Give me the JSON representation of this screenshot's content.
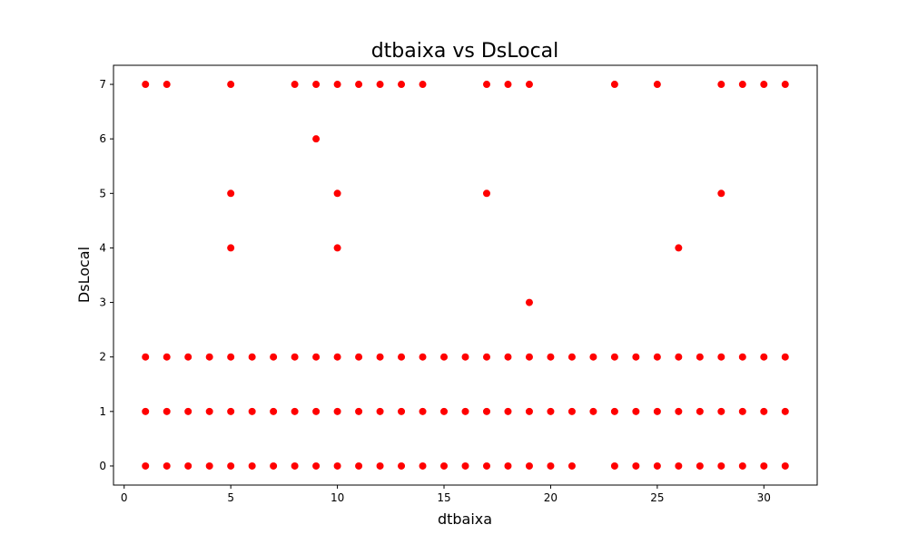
{
  "chart_data": {
    "type": "scatter",
    "title": "dtbaixa vs DsLocal",
    "xlabel": "dtbaixa",
    "ylabel": "DsLocal",
    "xlim": [
      -0.5,
      32.5
    ],
    "ylim": [
      -0.35,
      7.35
    ],
    "xticks": [
      0,
      5,
      10,
      15,
      20,
      25,
      30
    ],
    "yticks": [
      0,
      1,
      2,
      3,
      4,
      5,
      6,
      7
    ],
    "grid": false,
    "marker_color": "#ff0000",
    "series": [
      {
        "points": [
          [
            1,
            7
          ],
          [
            2,
            7
          ],
          [
            5,
            7
          ],
          [
            8,
            7
          ],
          [
            9,
            7
          ],
          [
            10,
            7
          ],
          [
            11,
            7
          ],
          [
            12,
            7
          ],
          [
            13,
            7
          ],
          [
            14,
            7
          ],
          [
            17,
            7
          ],
          [
            18,
            7
          ],
          [
            19,
            7
          ],
          [
            23,
            7
          ],
          [
            25,
            7
          ],
          [
            28,
            7
          ],
          [
            29,
            7
          ],
          [
            30,
            7
          ],
          [
            31,
            7
          ],
          [
            9,
            6
          ],
          [
            5,
            5
          ],
          [
            10,
            5
          ],
          [
            17,
            5
          ],
          [
            28,
            5
          ],
          [
            5,
            4
          ],
          [
            10,
            4
          ],
          [
            26,
            4
          ],
          [
            19,
            3
          ],
          [
            1,
            2
          ],
          [
            2,
            2
          ],
          [
            3,
            2
          ],
          [
            4,
            2
          ],
          [
            5,
            2
          ],
          [
            6,
            2
          ],
          [
            7,
            2
          ],
          [
            8,
            2
          ],
          [
            9,
            2
          ],
          [
            10,
            2
          ],
          [
            11,
            2
          ],
          [
            12,
            2
          ],
          [
            13,
            2
          ],
          [
            14,
            2
          ],
          [
            15,
            2
          ],
          [
            16,
            2
          ],
          [
            17,
            2
          ],
          [
            18,
            2
          ],
          [
            19,
            2
          ],
          [
            20,
            2
          ],
          [
            21,
            2
          ],
          [
            22,
            2
          ],
          [
            23,
            2
          ],
          [
            24,
            2
          ],
          [
            25,
            2
          ],
          [
            26,
            2
          ],
          [
            27,
            2
          ],
          [
            28,
            2
          ],
          [
            29,
            2
          ],
          [
            30,
            2
          ],
          [
            31,
            2
          ],
          [
            1,
            1
          ],
          [
            2,
            1
          ],
          [
            3,
            1
          ],
          [
            4,
            1
          ],
          [
            5,
            1
          ],
          [
            6,
            1
          ],
          [
            7,
            1
          ],
          [
            8,
            1
          ],
          [
            9,
            1
          ],
          [
            10,
            1
          ],
          [
            11,
            1
          ],
          [
            12,
            1
          ],
          [
            13,
            1
          ],
          [
            14,
            1
          ],
          [
            15,
            1
          ],
          [
            16,
            1
          ],
          [
            17,
            1
          ],
          [
            18,
            1
          ],
          [
            19,
            1
          ],
          [
            20,
            1
          ],
          [
            21,
            1
          ],
          [
            22,
            1
          ],
          [
            23,
            1
          ],
          [
            24,
            1
          ],
          [
            25,
            1
          ],
          [
            26,
            1
          ],
          [
            27,
            1
          ],
          [
            28,
            1
          ],
          [
            29,
            1
          ],
          [
            30,
            1
          ],
          [
            31,
            1
          ],
          [
            1,
            0
          ],
          [
            2,
            0
          ],
          [
            3,
            0
          ],
          [
            4,
            0
          ],
          [
            5,
            0
          ],
          [
            6,
            0
          ],
          [
            7,
            0
          ],
          [
            8,
            0
          ],
          [
            9,
            0
          ],
          [
            10,
            0
          ],
          [
            11,
            0
          ],
          [
            12,
            0
          ],
          [
            13,
            0
          ],
          [
            14,
            0
          ],
          [
            15,
            0
          ],
          [
            16,
            0
          ],
          [
            17,
            0
          ],
          [
            18,
            0
          ],
          [
            19,
            0
          ],
          [
            20,
            0
          ],
          [
            21,
            0
          ],
          [
            23,
            0
          ],
          [
            24,
            0
          ],
          [
            25,
            0
          ],
          [
            26,
            0
          ],
          [
            27,
            0
          ],
          [
            28,
            0
          ],
          [
            29,
            0
          ],
          [
            30,
            0
          ],
          [
            31,
            0
          ]
        ]
      }
    ]
  }
}
